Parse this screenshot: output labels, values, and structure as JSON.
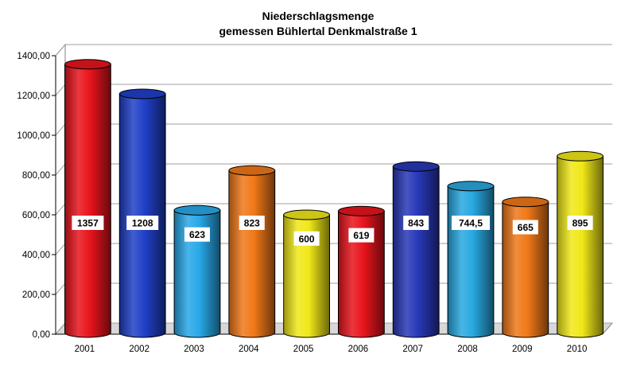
{
  "chart_data": {
    "type": "bar",
    "title": "Niederschlagsmenge",
    "subtitle": "gemessen Bühlertal Denkmalstraße 1",
    "categories": [
      "2001",
      "2002",
      "2003",
      "2004",
      "2005",
      "2006",
      "2007",
      "2008",
      "2009",
      "2010"
    ],
    "values": [
      1357,
      1208,
      623,
      823,
      600,
      619,
      843,
      744.5,
      665,
      895
    ],
    "value_labels": [
      "1357",
      "1208",
      "623",
      "823",
      "600",
      "619",
      "843",
      "744,5",
      "665",
      "895"
    ],
    "colors": [
      "#e8141c",
      "#2040c8",
      "#28a8e8",
      "#f07818",
      "#f0e818",
      "#e8141c",
      "#2838b8",
      "#28a8e0",
      "#f07818",
      "#f0e818"
    ],
    "ylim": [
      0,
      1400
    ],
    "yticks": [
      0,
      200,
      400,
      600,
      800,
      1000,
      1200,
      1400
    ],
    "ytick_labels": [
      "0,00",
      "200,00",
      "400,00",
      "600,00",
      "800,00",
      "1000,00",
      "1200,00",
      "1400,00"
    ],
    "grid": true,
    "legend": "none",
    "bar_style": "cylinder"
  }
}
